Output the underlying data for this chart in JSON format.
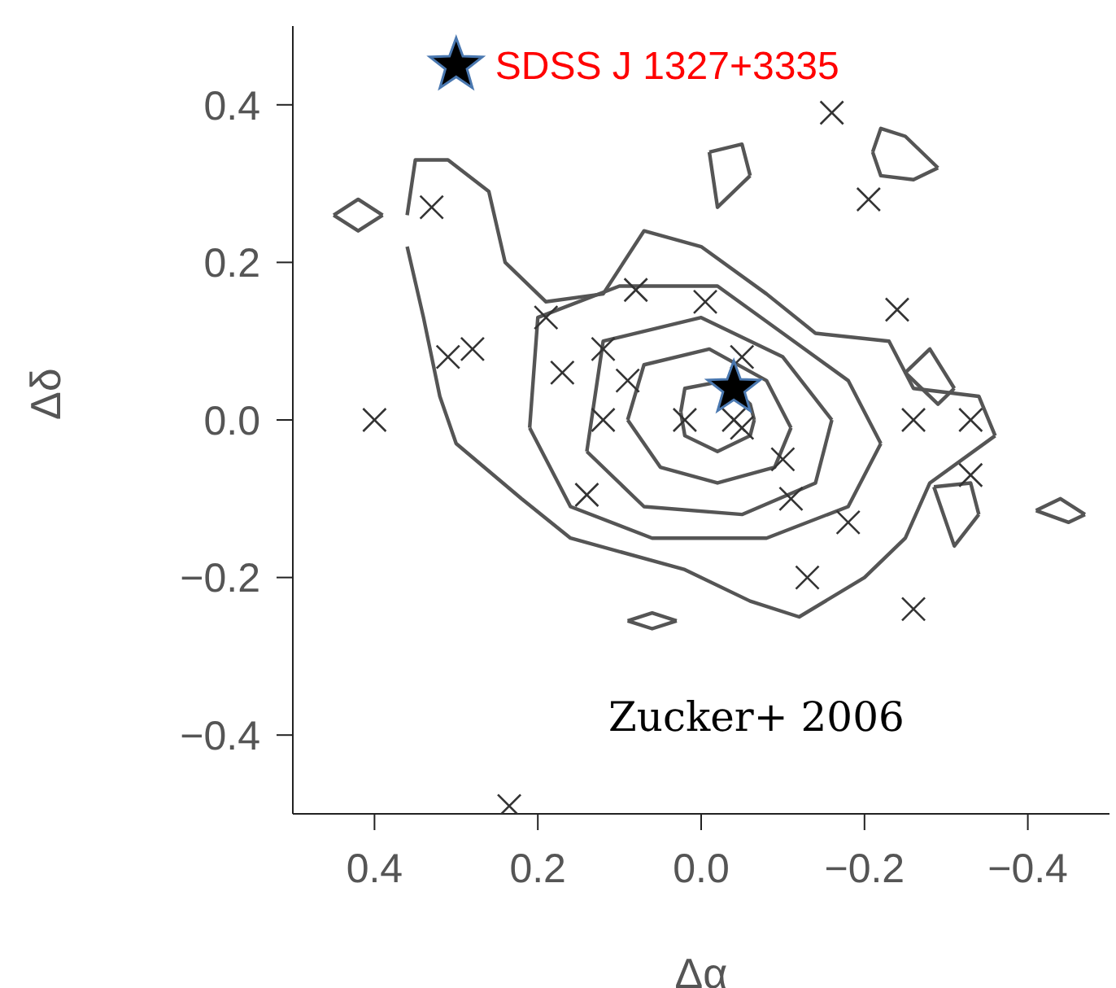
{
  "chart_data": {
    "type": "scatter",
    "xlabel": "Δα",
    "ylabel": "Δδ",
    "xlim": [
      0.5,
      -0.5
    ],
    "ylim": [
      -0.5,
      0.5
    ],
    "xticks": [
      {
        "value": 0.4,
        "label": "0.4"
      },
      {
        "value": 0.2,
        "label": "0.2"
      },
      {
        "value": 0,
        "label": "0.0"
      },
      {
        "value": -0.2,
        "label": "−0.2"
      },
      {
        "value": -0.4,
        "label": "−0.4"
      }
    ],
    "yticks": [
      {
        "value": -0.4,
        "label": "−0.4"
      },
      {
        "value": -0.2,
        "label": "−0.2"
      },
      {
        "value": 0,
        "label": "0.0"
      },
      {
        "value": 0.2,
        "label": "0.2"
      },
      {
        "value": 0.4,
        "label": "0.4"
      }
    ],
    "grid": false,
    "annotations": [
      {
        "text": "SDSS J 1327+3335",
        "x": 0.3,
        "y": 0.45
      },
      "Zucker+ 2006"
    ],
    "series": [
      {
        "type": "line",
        "marker": "none",
        "color": "#555555",
        "x": [
          -0.36,
          -0.34,
          -0.26,
          -0.23,
          -0.14,
          -0.08,
          0.0,
          0.07,
          0.12,
          0.19,
          0.24,
          0.26,
          0.31,
          0.35,
          0.36
        ],
        "values": [
          -0.02,
          0.03,
          0.04,
          0.1,
          0.11,
          0.16,
          0.22,
          0.24,
          0.16,
          0.15,
          0.2,
          0.29,
          0.33,
          0.33,
          0.26
        ]
      },
      {
        "type": "line",
        "marker": "none",
        "color": "#555555",
        "x": [
          -0.36,
          -0.28,
          -0.25,
          -0.2,
          -0.12,
          -0.06,
          0.02,
          0.16,
          0.22,
          0.3,
          0.32,
          0.34,
          0.36
        ],
        "values": [
          -0.02,
          -0.08,
          -0.15,
          -0.2,
          -0.25,
          -0.23,
          -0.19,
          -0.15,
          -0.1,
          -0.03,
          0.03,
          0.13,
          0.22
        ]
      },
      {
        "type": "line",
        "marker": "none",
        "color": "#555555",
        "x": [
          -0.22,
          -0.18,
          -0.1,
          -0.02,
          0.1,
          0.2,
          0.21
        ],
        "values": [
          -0.03,
          0.05,
          0.11,
          0.17,
          0.17,
          0.13,
          -0.01
        ]
      },
      {
        "type": "line",
        "marker": "none",
        "color": "#555555",
        "x": [
          -0.22,
          -0.18,
          -0.08,
          0.06,
          0.16,
          0.21
        ],
        "values": [
          -0.03,
          -0.11,
          -0.15,
          -0.15,
          -0.11,
          -0.01
        ]
      },
      {
        "type": "line",
        "marker": "none",
        "color": "#555555",
        "x": [
          -0.16,
          -0.1,
          0.0,
          0.12,
          0.14
        ],
        "values": [
          0.0,
          0.08,
          0.13,
          0.1,
          -0.04
        ]
      },
      {
        "type": "line",
        "marker": "none",
        "color": "#555555",
        "x": [
          -0.16,
          -0.14,
          -0.05,
          0.07,
          0.14
        ],
        "values": [
          0.0,
          -0.08,
          -0.12,
          -0.11,
          -0.04
        ]
      },
      {
        "type": "line",
        "marker": "none",
        "color": "#555555",
        "x": [
          -0.11,
          -0.08,
          -0.01,
          0.07,
          0.09
        ],
        "values": [
          -0.01,
          0.05,
          0.09,
          0.07,
          0.0
        ]
      },
      {
        "type": "line",
        "marker": "none",
        "color": "#555555",
        "x": [
          -0.11,
          -0.09,
          -0.02,
          0.05,
          0.09
        ],
        "values": [
          -0.01,
          -0.06,
          -0.08,
          -0.06,
          0.0
        ]
      },
      {
        "type": "line",
        "marker": "none",
        "color": "#555555",
        "x": [
          -0.065,
          -0.06,
          -0.03,
          0.02,
          0.025
        ],
        "values": [
          0.0,
          0.02,
          0.05,
          0.04,
          0.01
        ]
      },
      {
        "type": "line",
        "marker": "none",
        "color": "#555555",
        "x": [
          -0.065,
          -0.06,
          -0.02,
          0.02,
          0.025
        ],
        "values": [
          0.0,
          -0.02,
          -0.04,
          -0.02,
          0.01
        ]
      },
      {
        "type": "line",
        "marker": "none",
        "color": "#555555",
        "x": [
          0.39,
          0.42,
          0.45
        ],
        "values": [
          0.26,
          0.28,
          0.26
        ]
      },
      {
        "type": "line",
        "marker": "none",
        "color": "#555555",
        "x": [
          0.39,
          0.42,
          0.45
        ],
        "values": [
          0.26,
          0.24,
          0.26
        ]
      },
      {
        "type": "line",
        "marker": "none",
        "color": "#555555",
        "x": [
          -0.06,
          -0.05,
          -0.01
        ],
        "values": [
          0.31,
          0.35,
          0.34
        ]
      },
      {
        "type": "line",
        "marker": "none",
        "color": "#555555",
        "x": [
          -0.06,
          -0.02,
          -0.01
        ],
        "values": [
          0.31,
          0.27,
          0.34
        ]
      },
      {
        "type": "line",
        "marker": "none",
        "color": "#555555",
        "x": [
          -0.29,
          -0.25,
          -0.22,
          -0.21
        ],
        "values": [
          0.32,
          0.36,
          0.37,
          0.34
        ]
      },
      {
        "type": "line",
        "marker": "none",
        "color": "#555555",
        "x": [
          -0.29,
          -0.26,
          -0.22,
          -0.21
        ],
        "values": [
          0.32,
          0.305,
          0.31,
          0.34
        ]
      },
      {
        "type": "line",
        "marker": "none",
        "color": "#555555",
        "x": [
          -0.31,
          -0.28,
          -0.25
        ],
        "values": [
          0.04,
          0.09,
          0.06
        ]
      },
      {
        "type": "line",
        "marker": "none",
        "color": "#555555",
        "x": [
          -0.31,
          -0.29,
          -0.25
        ],
        "values": [
          0.04,
          0.02,
          0.06
        ]
      },
      {
        "type": "line",
        "marker": "none",
        "color": "#555555",
        "x": [
          -0.34,
          -0.33,
          -0.285
        ],
        "values": [
          -0.12,
          -0.08,
          -0.085
        ]
      },
      {
        "type": "line",
        "marker": "none",
        "color": "#555555",
        "x": [
          -0.34,
          -0.31,
          -0.285
        ],
        "values": [
          -0.12,
          -0.16,
          -0.085
        ]
      },
      {
        "type": "line",
        "marker": "none",
        "color": "#555555",
        "x": [
          -0.47,
          -0.44,
          -0.41
        ],
        "values": [
          -0.12,
          -0.1,
          -0.115
        ]
      },
      {
        "type": "line",
        "marker": "none",
        "color": "#555555",
        "x": [
          -0.47,
          -0.45,
          -0.41
        ],
        "values": [
          -0.12,
          -0.13,
          -0.115
        ]
      },
      {
        "type": "line",
        "marker": "none",
        "color": "#555555",
        "x": [
          0.03,
          0.06,
          0.09
        ],
        "values": [
          -0.255,
          -0.245,
          -0.255
        ]
      },
      {
        "type": "line",
        "marker": "none",
        "color": "#555555",
        "x": [
          0.03,
          0.06,
          0.09
        ],
        "values": [
          -0.255,
          -0.265,
          -0.255
        ]
      },
      {
        "marker": "cross",
        "color": "#333333",
        "x": [
          0.33,
          0.31,
          0.28,
          0.4,
          0.19,
          0.08,
          0.12,
          0.17,
          0.09,
          -0.005,
          -0.16,
          -0.205,
          -0.24,
          -0.05,
          0.12,
          0.14,
          0.02,
          0.235,
          -0.26,
          -0.33,
          -0.33,
          -0.1,
          -0.11,
          -0.18,
          -0.13,
          -0.26,
          -0.04,
          -0.05
        ],
        "values": [
          0.27,
          0.08,
          0.09,
          0.0,
          0.13,
          0.165,
          0.09,
          0.06,
          0.05,
          0.15,
          0.39,
          0.28,
          0.14,
          0.08,
          0.0,
          -0.095,
          0.0,
          -0.49,
          0.0,
          0.0,
          -0.07,
          -0.05,
          -0.1,
          -0.13,
          -0.2,
          -0.24,
          0.0,
          -0.01
        ]
      },
      {
        "marker": "star",
        "color": "#000000",
        "x": [
          -0.04
        ],
        "values": [
          0.04
        ]
      },
      {
        "marker": "star",
        "color": "#000000",
        "x": [
          0.3
        ],
        "values": [
          0.45
        ]
      }
    ]
  }
}
